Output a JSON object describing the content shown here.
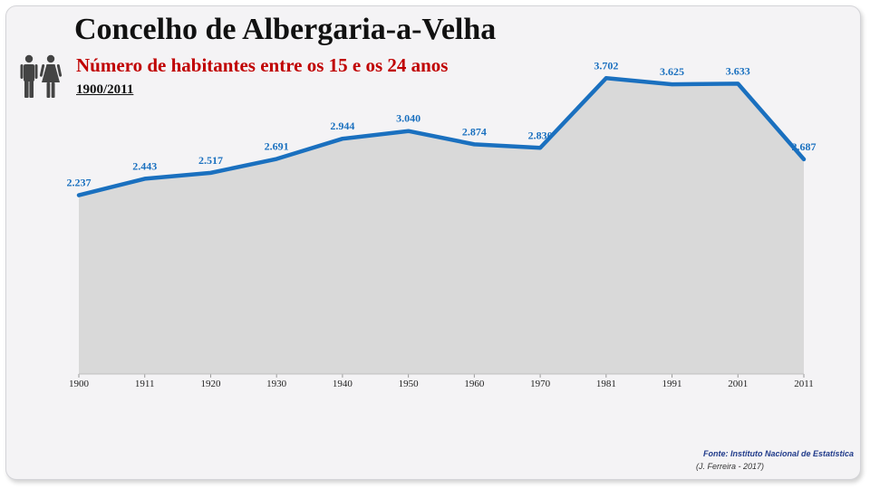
{
  "header": {
    "title": "Concelho de Albergaria-a-Velha",
    "subtitle": "Número de habitantes entre os 15 e os 24 anos",
    "period": "1900/2011"
  },
  "icons": {
    "people": "man-woman-icon"
  },
  "footer": {
    "source": "Fonte: Instituto Nacional de Estatística",
    "credit": "(J. Ferreira - 2017)"
  },
  "colors": {
    "line": "#1a70bf",
    "area": "#d9d9d9",
    "labels": "#1a70bf",
    "subtitle": "#c00000",
    "source": "#1f3a8a"
  },
  "chart_data": {
    "type": "area",
    "title": "Número de habitantes entre os 15 e os 24 anos",
    "xlabel": "",
    "ylabel": "",
    "categories": [
      "1900",
      "1911",
      "1920",
      "1930",
      "1940",
      "1950",
      "1960",
      "1970",
      "1981",
      "1991",
      "2001",
      "2011"
    ],
    "values": [
      2237,
      2443,
      2517,
      2691,
      2944,
      3040,
      2874,
      2830,
      3702,
      3625,
      3633,
      2687
    ],
    "data_labels": [
      "2.237",
      "2.443",
      "2.517",
      "2.691",
      "2.944",
      "3.040",
      "2.874",
      "2.830",
      "3.702",
      "3.625",
      "3.633",
      "2.687"
    ],
    "ylim": [
      0,
      4000
    ],
    "grid": false,
    "legend": "none"
  }
}
